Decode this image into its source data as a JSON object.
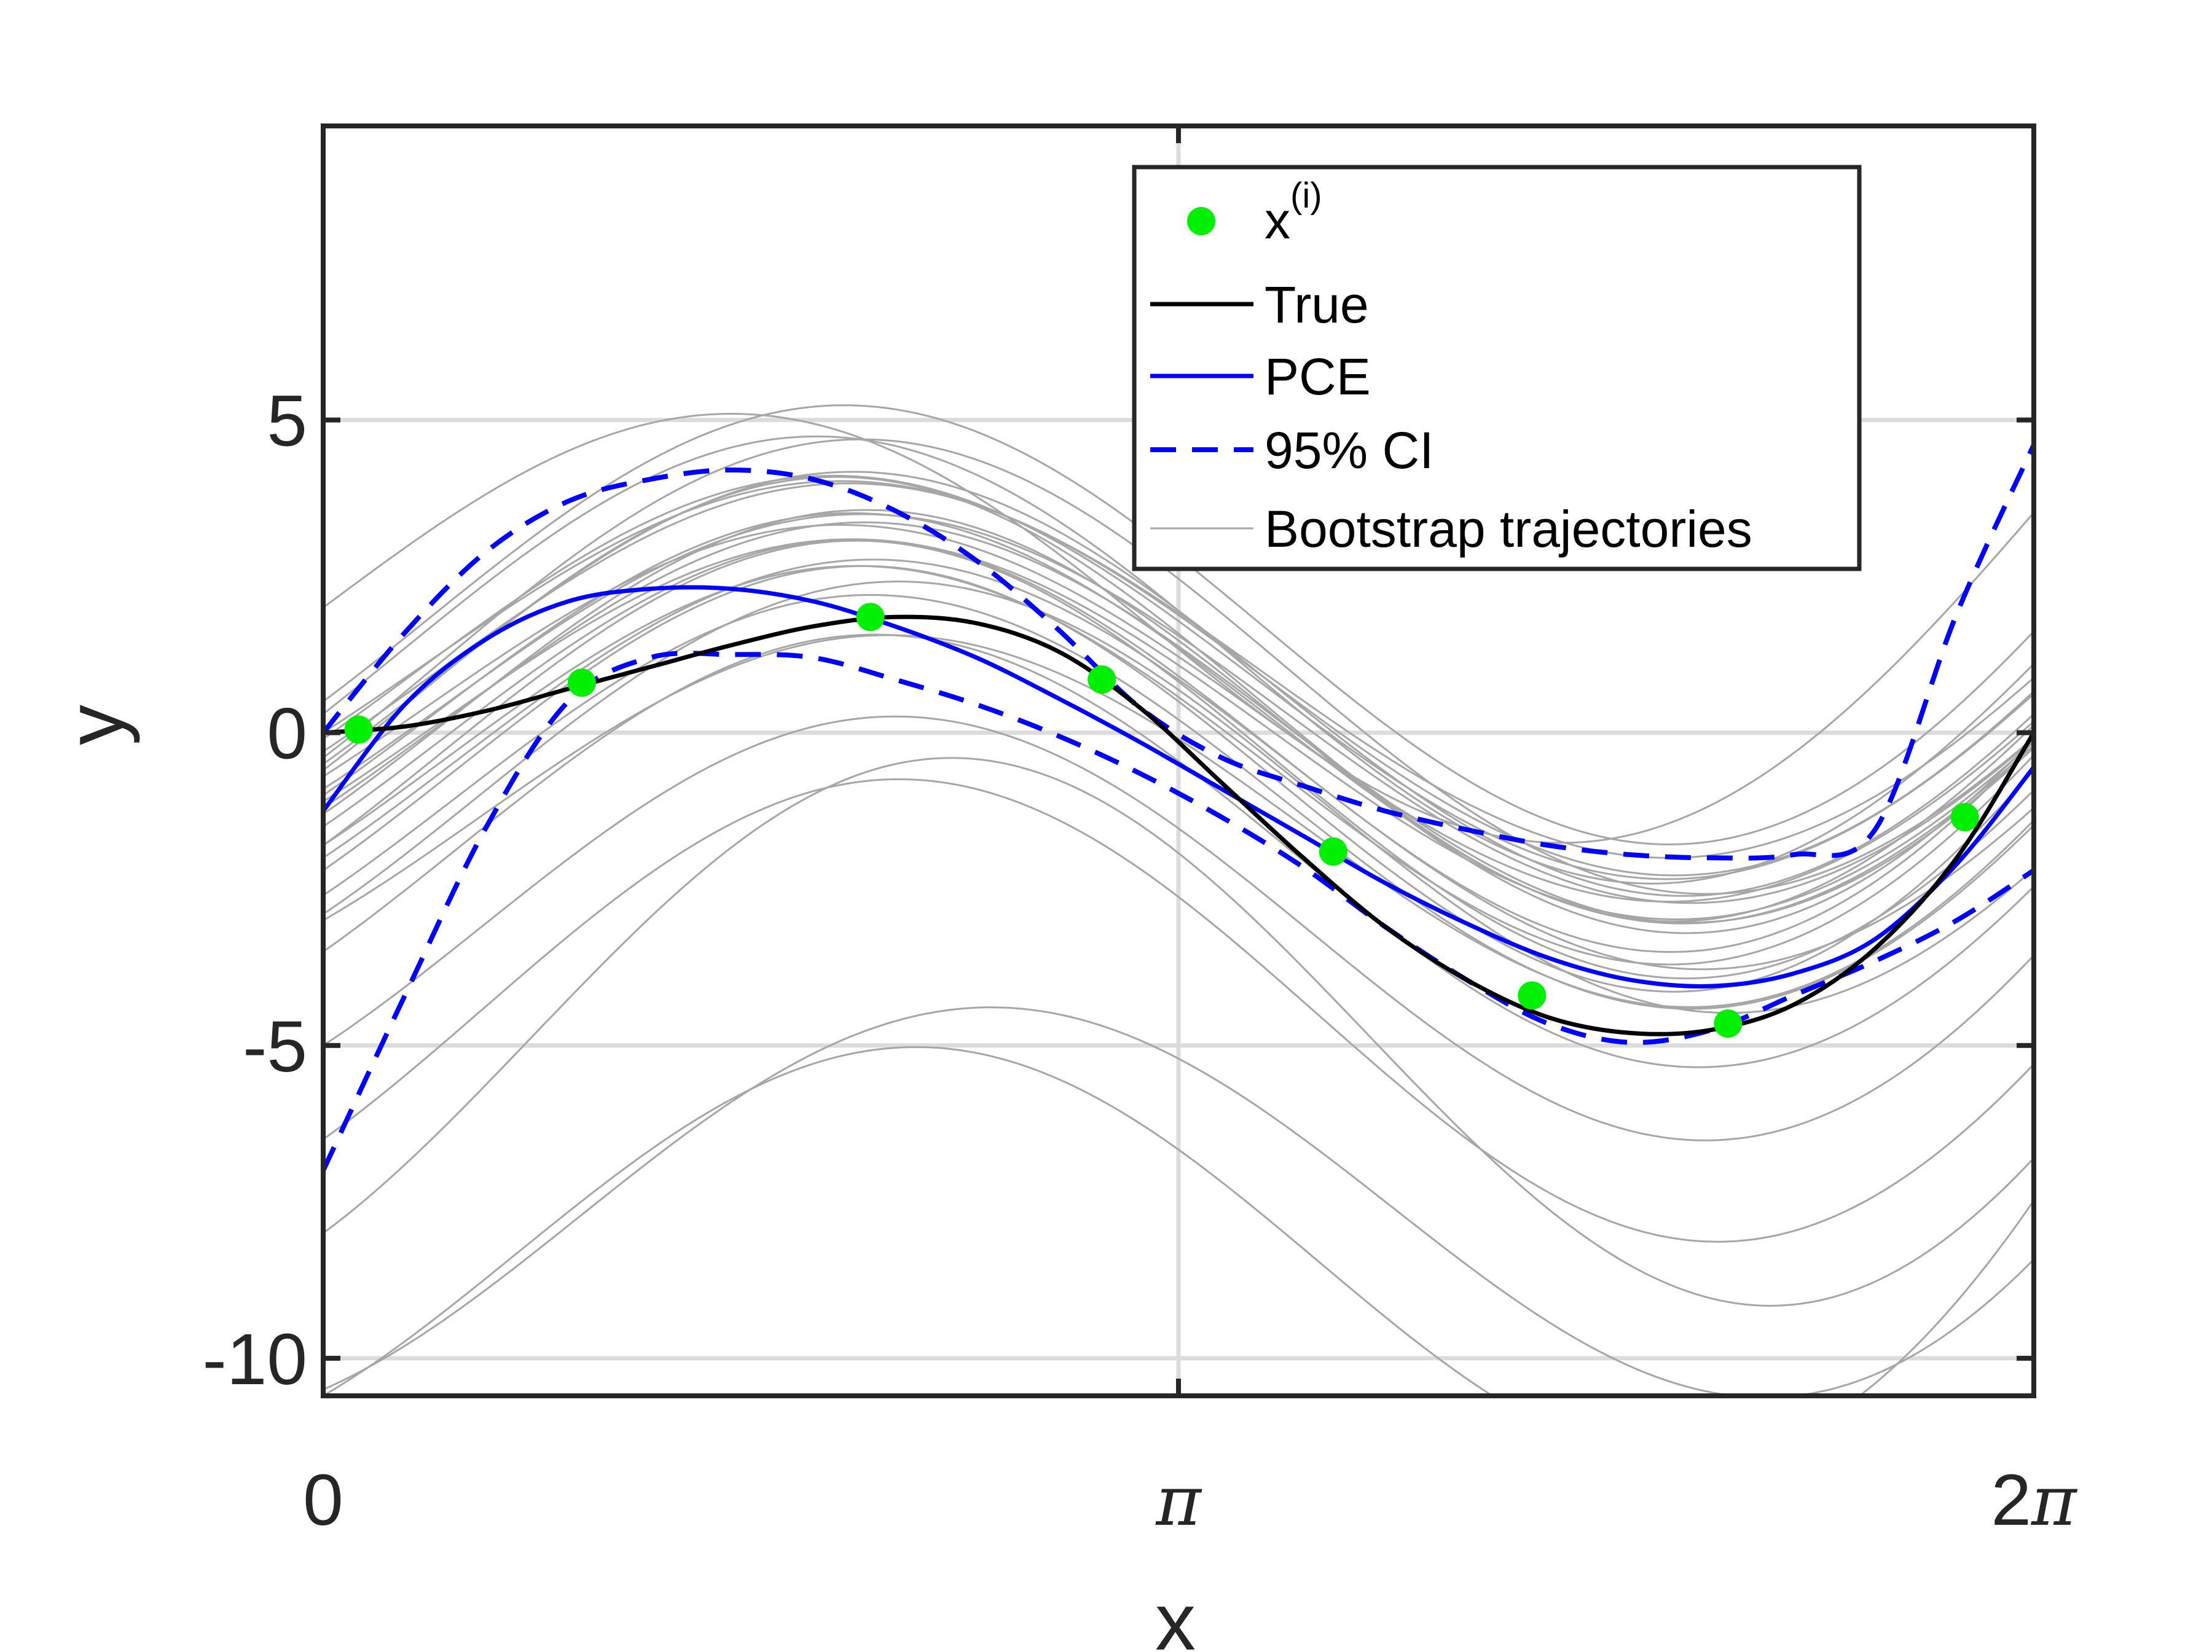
{
  "chart_data": {
    "type": "line",
    "xlabel": "x",
    "ylabel": "y",
    "xlim": [
      0,
      6.283185307
    ],
    "ylim": [
      -10.6,
      9.7
    ],
    "x_ticks": [
      {
        "value": 0,
        "label": "0"
      },
      {
        "value": 3.141592654,
        "label": "π"
      },
      {
        "value": 6.283185307,
        "label": "2π"
      }
    ],
    "y_ticks": [
      {
        "value": 5,
        "label": "5"
      },
      {
        "value": 0,
        "label": "0"
      },
      {
        "value": -5,
        "label": "-5"
      },
      {
        "value": -10,
        "label": "-10"
      }
    ],
    "grid": true,
    "legend_position": "top-right",
    "legend": [
      {
        "key": "samples",
        "label": "x",
        "sup": "(i)"
      },
      {
        "key": "true",
        "label": "True"
      },
      {
        "key": "pce",
        "label": "PCE"
      },
      {
        "key": "ci",
        "label": "95% CI"
      },
      {
        "key": "bootstrap",
        "label": "Bootstrap trajectories"
      }
    ],
    "colors": {
      "samples": "#00ee00",
      "true": "#000000",
      "pce": "#0000ff",
      "ci": "#0000ff",
      "bootstrap": "#a6a6a6",
      "grid": "#dcdcdc",
      "axes": "#262626"
    },
    "samples": {
      "x": [
        0.13,
        0.95,
        2.01,
        2.86,
        3.71,
        4.44,
        5.16,
        6.03
      ],
      "y": [
        0.05,
        0.8,
        1.85,
        0.85,
        -1.9,
        -4.2,
        -4.65,
        -1.35
      ]
    },
    "series": [
      {
        "key": "true",
        "x": [
          0,
          0.3,
          0.6,
          0.9,
          1.2,
          1.5,
          1.8,
          2.1,
          2.4,
          2.7,
          3.0,
          3.3,
          3.6,
          3.9,
          4.2,
          4.5,
          4.8,
          5.1,
          5.4,
          5.7,
          6.0,
          6.283
        ],
        "y": [
          0,
          0.1,
          0.35,
          0.7,
          1.05,
          1.4,
          1.7,
          1.85,
          1.75,
          1.3,
          0.4,
          -0.8,
          -2.0,
          -3.1,
          -3.95,
          -4.55,
          -4.8,
          -4.75,
          -4.35,
          -3.45,
          -2.0,
          0.0
        ]
      },
      {
        "key": "pce",
        "x": [
          0,
          0.3,
          0.6,
          0.9,
          1.2,
          1.5,
          1.8,
          2.1,
          2.4,
          2.7,
          3.0,
          3.3,
          3.6,
          3.9,
          4.2,
          4.5,
          4.8,
          5.1,
          5.4,
          5.7,
          6.0,
          6.283
        ],
        "y": [
          -1.25,
          0.45,
          1.5,
          2.1,
          2.3,
          2.3,
          2.1,
          1.7,
          1.2,
          0.55,
          -0.15,
          -0.9,
          -1.65,
          -2.4,
          -3.05,
          -3.6,
          -3.95,
          -4.05,
          -3.85,
          -3.3,
          -2.1,
          -0.55
        ]
      },
      {
        "key": "ci_upper",
        "x": [
          0,
          0.3,
          0.6,
          0.9,
          1.2,
          1.5,
          1.8,
          2.1,
          2.4,
          2.7,
          3.0,
          3.3,
          3.6,
          3.9,
          4.2,
          4.5,
          4.8,
          5.1,
          5.4,
          5.7,
          6.0,
          6.283
        ],
        "y": [
          0.0,
          1.6,
          2.9,
          3.7,
          4.05,
          4.2,
          4.05,
          3.55,
          2.75,
          1.65,
          0.4,
          -0.4,
          -0.85,
          -1.25,
          -1.55,
          -1.8,
          -1.95,
          -2.0,
          -1.95,
          -1.55,
          1.9,
          4.6
        ]
      },
      {
        "key": "ci_lower",
        "x": [
          0,
          0.3,
          0.6,
          0.9,
          1.2,
          1.5,
          1.8,
          2.1,
          2.4,
          2.7,
          3.0,
          3.3,
          3.6,
          3.9,
          4.2,
          4.5,
          4.8,
          5.1,
          5.4,
          5.7,
          6.0,
          6.283
        ],
        "y": [
          -7.0,
          -4.2,
          -1.5,
          0.5,
          1.2,
          1.25,
          1.2,
          0.85,
          0.45,
          -0.05,
          -0.65,
          -1.35,
          -2.15,
          -3.1,
          -3.95,
          -4.65,
          -4.95,
          -4.75,
          -4.2,
          -3.65,
          -3.0,
          -2.2
        ]
      }
    ],
    "bootstrap_trajectories": [
      {
        "key": "boot-1",
        "y0": 2.0,
        "a": [
          3.6,
          1.0,
          0.0
        ],
        "b": [
          0.0,
          1.9,
          0.0
        ]
      },
      {
        "key": "boot-2",
        "y0": -10.6,
        "a": [
          3.3,
          1.0,
          0.0
        ],
        "b": [
          5.3,
          3.9,
          0.0
        ]
      },
      {
        "key": "boot-3",
        "y0": -10.5,
        "a": [
          2.4,
          0.8,
          0.0
        ],
        "b": [
          6.2,
          2.6,
          0.0
        ]
      },
      {
        "key": "boot-4",
        "y0": -8.0,
        "a": [
          3.5,
          1.0,
          0.0
        ],
        "b": [
          6.6,
          1.5,
          0.0
        ]
      },
      {
        "key": "boot-5",
        "y0": -6.5,
        "a": [
          3.4,
          1.0,
          0.0
        ],
        "b": [
          4.4,
          1.5,
          0.0
        ]
      },
      {
        "key": "boot-6",
        "y0": -5.0,
        "a": [
          3.2,
          1.0,
          0.0
        ],
        "b": [
          4.1,
          1.8,
          0.0
        ]
      },
      {
        "key": "boot-7",
        "y0": -3.5,
        "a": [
          3.3,
          1.0,
          0.0
        ],
        "b": [
          3.5,
          1.3,
          0.0
        ]
      },
      {
        "key": "boot-8",
        "y0": -2.6,
        "a": [
          3.2,
          1.0,
          0.0
        ],
        "b": [
          3.3,
          1.4,
          0.0
        ]
      },
      {
        "key": "boot-9",
        "y0": -1.8,
        "a": [
          3.4,
          1.0,
          0.0
        ],
        "b": [
          3.0,
          1.1,
          0.0
        ]
      },
      {
        "key": "boot-10",
        "y0": -1.2,
        "a": [
          3.1,
          1.0,
          0.0
        ],
        "b": [
          3.0,
          1.2,
          0.0
        ]
      },
      {
        "key": "boot-11",
        "y0": -0.6,
        "a": [
          3.5,
          1.0,
          0.0
        ],
        "b": [
          2.5,
          0.9,
          0.0
        ]
      },
      {
        "key": "boot-12",
        "y0": -0.1,
        "a": [
          3.2,
          1.0,
          0.0
        ],
        "b": [
          2.2,
          0.9,
          0.0
        ]
      },
      {
        "key": "boot-13",
        "y0": 0.3,
        "a": [
          3.6,
          1.0,
          0.0
        ],
        "b": [
          2.0,
          1.0,
          0.0
        ]
      },
      {
        "key": "boot-14",
        "y0": -0.9,
        "a": [
          3.0,
          1.0,
          0.0
        ],
        "b": [
          2.8,
          1.0,
          0.0
        ]
      },
      {
        "key": "boot-15",
        "y0": -1.5,
        "a": [
          3.3,
          1.0,
          0.0
        ],
        "b": [
          3.0,
          1.7,
          0.0
        ]
      },
      {
        "key": "boot-16",
        "y0": -2.2,
        "a": [
          3.4,
          1.0,
          0.0
        ],
        "b": [
          3.4,
          2.0,
          0.0
        ]
      },
      {
        "key": "boot-17",
        "y0": -0.3,
        "a": [
          3.1,
          1.0,
          0.0
        ],
        "b": [
          2.6,
          1.2,
          0.0
        ]
      },
      {
        "key": "boot-18",
        "y0": 0.0,
        "a": [
          3.0,
          1.0,
          0.0
        ],
        "b": [
          2.3,
          1.1,
          0.0
        ]
      },
      {
        "key": "boot-19",
        "y0": -1.0,
        "a": [
          3.2,
          1.0,
          0.0
        ],
        "b": [
          2.7,
          1.0,
          0.0
        ]
      },
      {
        "key": "boot-20",
        "y0": -3.0,
        "a": [
          2.9,
          1.0,
          0.0
        ],
        "b": [
          3.6,
          2.0,
          0.0
        ]
      },
      {
        "key": "boot-21",
        "y0": -2.9,
        "a": [
          3.1,
          1.0,
          0.0
        ],
        "b": [
          3.9,
          0.9,
          0.0
        ]
      },
      {
        "key": "boot-22",
        "y0": -0.5,
        "a": [
          3.3,
          1.0,
          0.0
        ],
        "b": [
          2.8,
          1.0,
          0.0
        ]
      },
      {
        "key": "boot-23",
        "y0": -1.1,
        "a": [
          3.0,
          1.0,
          0.0
        ],
        "b": [
          2.6,
          1.2,
          0.0
        ]
      },
      {
        "key": "boot-24",
        "y0": -0.7,
        "a": [
          3.0,
          1.0,
          0.0
        ],
        "b": [
          2.3,
          1.1,
          0.0
        ]
      },
      {
        "key": "boot-25",
        "y0": -1.8,
        "a": [
          3.2,
          1.0,
          0.0
        ],
        "b": [
          3.0,
          1.8,
          0.0
        ]
      },
      {
        "key": "boot-26",
        "y0": -2.0,
        "a": [
          3.1,
          1.0,
          0.0
        ],
        "b": [
          3.2,
          1.0,
          0.0
        ]
      },
      {
        "key": "boot-27",
        "y0": -0.4,
        "a": [
          3.4,
          1.0,
          0.0
        ],
        "b": [
          3.0,
          0.4,
          0.0
        ]
      },
      {
        "key": "boot-28",
        "y0": -1.3,
        "a": [
          3.3,
          1.0,
          0.0
        ],
        "b": [
          3.3,
          1.5,
          0.0
        ]
      },
      {
        "key": "boot-29",
        "y0": 0.5,
        "a": [
          3.5,
          1.0,
          0.0
        ],
        "b": [
          2.8,
          1.4,
          0.0
        ]
      }
    ]
  }
}
